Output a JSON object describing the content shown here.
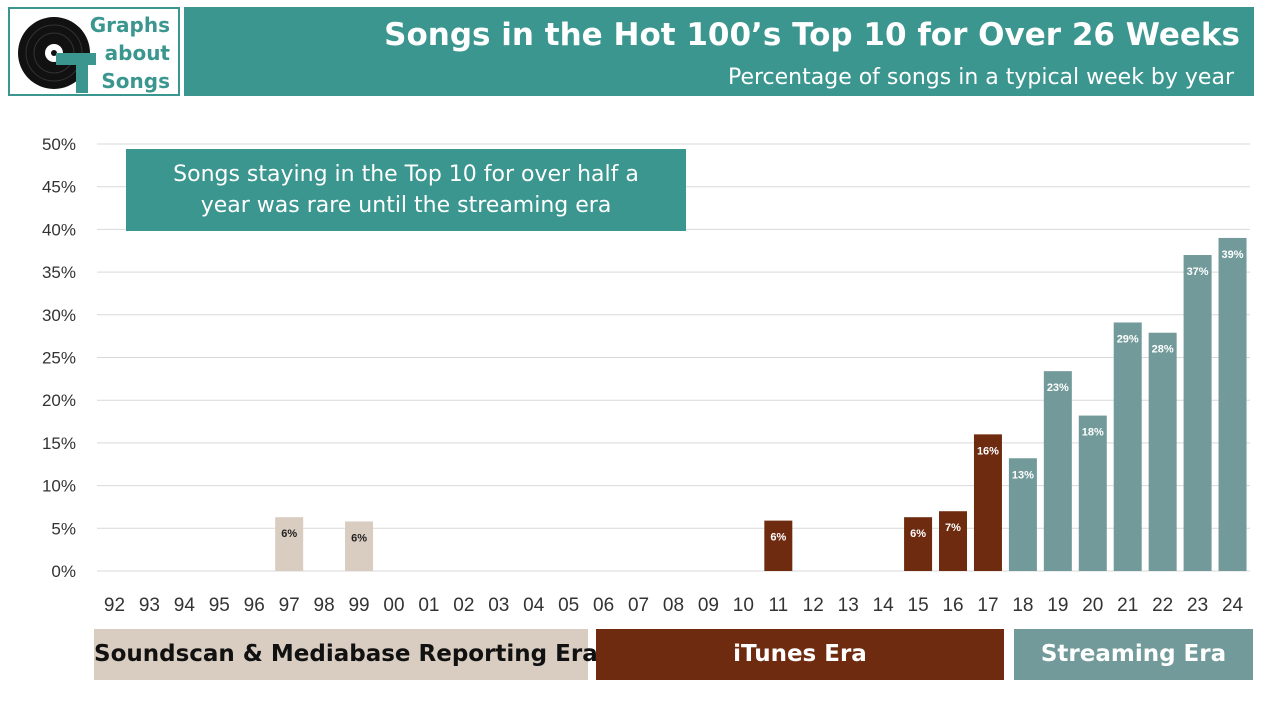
{
  "logo": {
    "icon": "vinyl-record-icon",
    "line1": "Graphs",
    "line2": "about",
    "line3": "Songs"
  },
  "header": {
    "title": "Songs in the Hot 100’s Top 10 for Over 26 Weeks",
    "subtitle": "Percentage of songs in a typical week by year"
  },
  "annotation": {
    "line1": "Songs staying in the Top 10 for over half a",
    "line2": "year was rare until the streaming era"
  },
  "colors": {
    "brand": "#3a968e",
    "era_soundscan": "#d9ccc0",
    "era_itunes": "#6e2b10",
    "era_streaming": "#729a9a",
    "grid": "#d9d9d9"
  },
  "eras": [
    {
      "label": "Soundscan & Mediabase Reporting Era"
    },
    {
      "label": "iTunes Era"
    },
    {
      "label": "Streaming Era"
    }
  ],
  "chart_data": {
    "type": "bar",
    "categories": [
      "92",
      "93",
      "94",
      "95",
      "96",
      "97",
      "98",
      "99",
      "00",
      "01",
      "02",
      "03",
      "04",
      "05",
      "06",
      "07",
      "08",
      "09",
      "10",
      "11",
      "12",
      "13",
      "14",
      "15",
      "16",
      "17",
      "18",
      "19",
      "20",
      "21",
      "22",
      "23",
      "24"
    ],
    "values": [
      0,
      0,
      0,
      0,
      0,
      6.3,
      0,
      5.8,
      0,
      0,
      0,
      0,
      0,
      0,
      0,
      0,
      0,
      0,
      0,
      5.9,
      0,
      0,
      0,
      6.3,
      7.0,
      16.0,
      13.2,
      23.4,
      18.2,
      29.1,
      27.9,
      37.0,
      39.0
    ],
    "labels": [
      "",
      "",
      "",
      "",
      "",
      "6%",
      "",
      "6%",
      "",
      "",
      "",
      "",
      "",
      "",
      "",
      "",
      "",
      "",
      "",
      "6%",
      "",
      "",
      "",
      "6%",
      "7%",
      "16%",
      "13%",
      "23%",
      "18%",
      "29%",
      "28%",
      "37%",
      "39%"
    ],
    "era_index": [
      0,
      0,
      0,
      0,
      0,
      0,
      0,
      0,
      0,
      0,
      0,
      0,
      0,
      0,
      1,
      1,
      1,
      1,
      1,
      1,
      1,
      1,
      1,
      1,
      1,
      1,
      2,
      2,
      2,
      2,
      2,
      2,
      2
    ],
    "y_ticks": [
      "0%",
      "5%",
      "10%",
      "15%",
      "20%",
      "25%",
      "30%",
      "35%",
      "40%",
      "45%",
      "50%"
    ],
    "ylim": [
      0,
      50
    ],
    "grid": true
  }
}
